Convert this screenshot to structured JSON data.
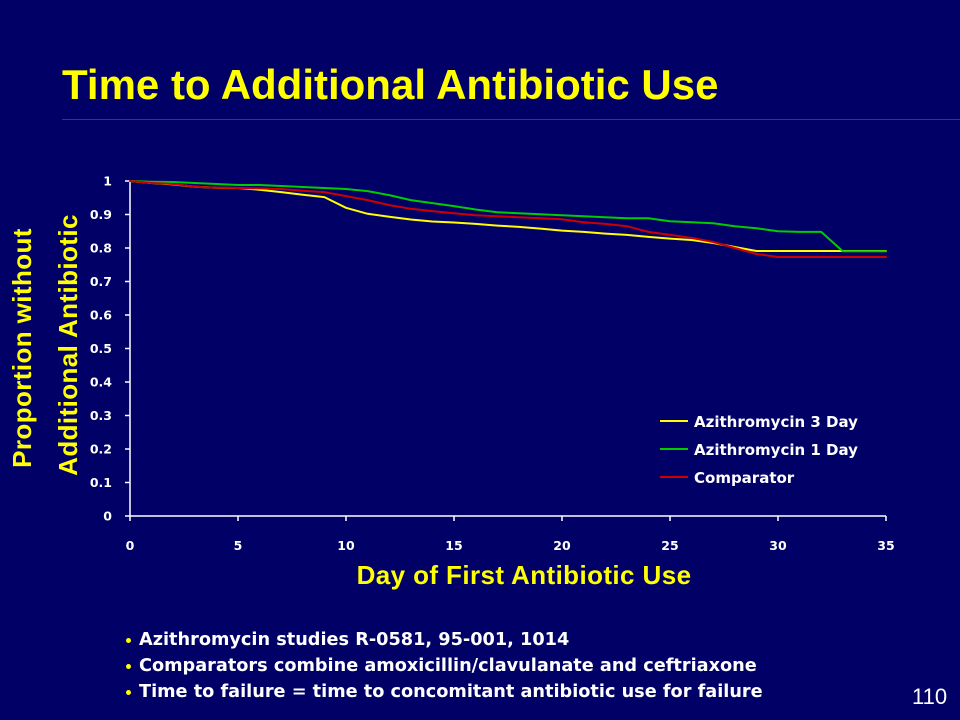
{
  "slide": {
    "title": "Time to Additional Antibiotic Use",
    "bullets": [
      "Azithromycin studies R-0581, 95-001, 1014",
      "Comparators combine amoxicillin/clavulanate and ceftriaxone",
      "Time to failure = time to concomitant antibiotic use for failure"
    ],
    "page_number": "110",
    "colors": {
      "background": "#000066",
      "title": "#ffff00",
      "title_rule": "#cc0000",
      "text": "#ffffff",
      "bullet_marker": "#ffff00",
      "axis_title": "#ffff00"
    }
  },
  "chart_data": {
    "type": "line",
    "xlabel": "Day of First Antibiotic Use",
    "ylabel": [
      "Proportion without",
      "Additional Antibiotic"
    ],
    "xlim": [
      0,
      35
    ],
    "ylim": [
      0,
      1
    ],
    "xticks": [
      0,
      5,
      10,
      15,
      20,
      25,
      30,
      35
    ],
    "yticks": [
      0,
      0.1,
      0.2,
      0.3,
      0.4,
      0.5,
      0.6,
      0.7,
      0.8,
      0.9,
      1
    ],
    "grid": false,
    "legend": "bottom-right",
    "x": [
      0,
      1,
      2,
      3,
      4,
      5,
      6,
      7,
      8,
      9,
      10,
      11,
      12,
      13,
      14,
      15,
      16,
      17,
      18,
      19,
      20,
      21,
      22,
      23,
      24,
      25,
      26,
      27,
      28,
      29,
      30,
      31,
      32,
      33,
      34,
      35
    ],
    "series": [
      {
        "name": "Azithromycin 3 Day",
        "color": "#ffff00",
        "values": [
          1.0,
          0.994,
          0.99,
          0.983,
          0.98,
          0.979,
          0.974,
          0.967,
          0.959,
          0.952,
          0.92,
          0.902,
          0.893,
          0.885,
          0.879,
          0.876,
          0.872,
          0.867,
          0.863,
          0.858,
          0.852,
          0.848,
          0.843,
          0.839,
          0.833,
          0.828,
          0.824,
          0.815,
          0.803,
          0.791,
          0.791,
          0.791,
          0.791,
          0.791,
          0.791,
          0.791
        ]
      },
      {
        "name": "Azithromycin 1 Day",
        "color": "#00cc00",
        "values": [
          1.0,
          0.998,
          0.997,
          0.994,
          0.991,
          0.988,
          0.988,
          0.985,
          0.982,
          0.979,
          0.976,
          0.97,
          0.958,
          0.943,
          0.934,
          0.925,
          0.915,
          0.907,
          0.904,
          0.901,
          0.898,
          0.895,
          0.892,
          0.889,
          0.889,
          0.88,
          0.877,
          0.874,
          0.865,
          0.859,
          0.85,
          0.848,
          0.848,
          0.79,
          0.79,
          0.79
        ]
      },
      {
        "name": "Comparator",
        "color": "#cc0000",
        "values": [
          1.0,
          0.994,
          0.991,
          0.983,
          0.98,
          0.979,
          0.978,
          0.976,
          0.971,
          0.967,
          0.955,
          0.943,
          0.928,
          0.917,
          0.91,
          0.904,
          0.898,
          0.895,
          0.892,
          0.889,
          0.886,
          0.877,
          0.872,
          0.865,
          0.848,
          0.839,
          0.83,
          0.818,
          0.8,
          0.782,
          0.773,
          0.773,
          0.773,
          0.773,
          0.773,
          0.773
        ]
      }
    ]
  }
}
